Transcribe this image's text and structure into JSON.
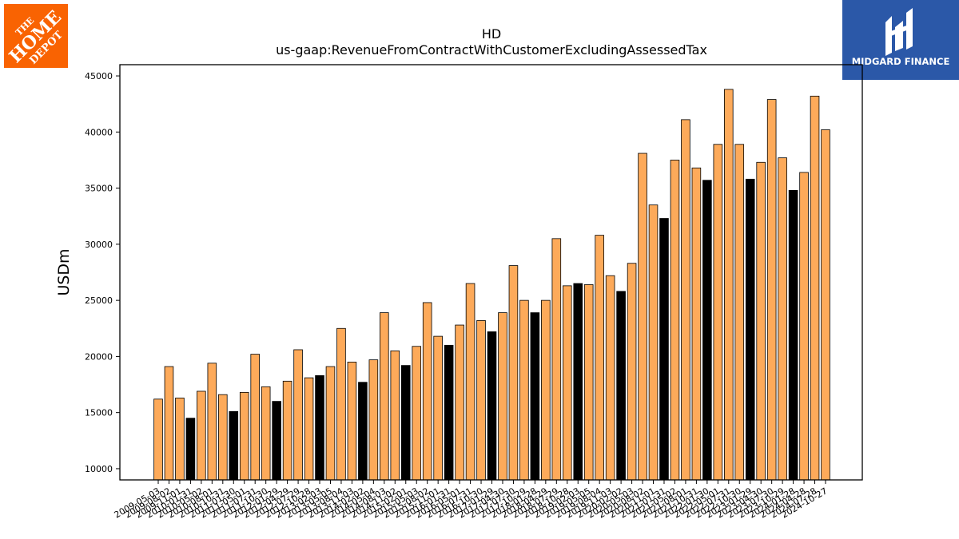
{
  "brand": {
    "left_logo_lines": [
      "THE",
      "HOME",
      "DEPOT"
    ],
    "left_logo_color": "#F96302",
    "right_logo_text": "MIDGARD FINANCE",
    "right_logo_color": "#2B58A8"
  },
  "chart_data": {
    "type": "bar",
    "title": "HD",
    "subtitle": "us-gaap:RevenueFromContractWithCustomerExcludingAssessedTax",
    "xlabel": "",
    "ylabel": "USDm",
    "ylim": [
      9000,
      46000
    ],
    "yticks": [
      10000,
      15000,
      20000,
      25000,
      30000,
      35000,
      40000,
      45000
    ],
    "colors": {
      "quarter": "#FDAA5A",
      "annual_q4": "#000000",
      "edge": "#000000"
    },
    "categories": [
      "2009-05-03",
      "2009-08-02",
      "2009-11-01",
      "2010-01-31",
      "2010-05-02",
      "2010-08-01",
      "2010-10-31",
      "2011-01-30",
      "2011-05-01",
      "2011-07-31",
      "2011-10-30",
      "2012-01-29",
      "2012-04-29",
      "2012-07-29",
      "2012-10-28",
      "2013-02-03",
      "2013-05-05",
      "2013-08-04",
      "2013-11-03",
      "2014-02-02",
      "2014-05-04",
      "2014-08-03",
      "2014-11-02",
      "2015-02-01",
      "2015-05-03",
      "2015-08-02",
      "2015-11-01",
      "2016-01-31",
      "2016-05-01",
      "2016-07-31",
      "2016-10-30",
      "2017-01-29",
      "2017-04-30",
      "2017-07-30",
      "2017-10-29",
      "2018-01-28",
      "2018-04-29",
      "2018-07-29",
      "2018-10-28",
      "2019-02-03",
      "2019-05-05",
      "2019-08-04",
      "2019-11-03",
      "2020-02-02",
      "2020-05-03",
      "2020-08-02",
      "2020-11-01",
      "2021-01-31",
      "2021-05-02",
      "2021-08-01",
      "2021-10-31",
      "2022-01-30",
      "2022-05-01",
      "2022-07-31",
      "2022-10-30",
      "2023-01-29",
      "2023-04-30",
      "2023-07-30",
      "2023-10-29",
      "2024-01-28",
      "2024-04-28",
      "2024-07-28",
      "2024-10-27"
    ],
    "values": [
      16200,
      19100,
      16300,
      14500,
      16900,
      19400,
      16600,
      15100,
      16800,
      20200,
      17300,
      16000,
      17800,
      20600,
      18100,
      18300,
      19100,
      22500,
      19500,
      17700,
      19700,
      23900,
      20500,
      19200,
      20900,
      24800,
      21800,
      21000,
      22800,
      26500,
      23200,
      22200,
      23900,
      28100,
      25000,
      23900,
      25000,
      30500,
      26300,
      26500,
      26400,
      30800,
      27200,
      25800,
      28300,
      38100,
      33500,
      32300,
      37500,
      41100,
      36800,
      35700,
      38900,
      43800,
      38900,
      35800,
      37300,
      42900,
      37700,
      34800,
      36400,
      43200,
      40200
    ],
    "annual_flags": [
      0,
      0,
      0,
      1,
      0,
      0,
      0,
      1,
      0,
      0,
      0,
      1,
      0,
      0,
      0,
      1,
      0,
      0,
      0,
      1,
      0,
      0,
      0,
      1,
      0,
      0,
      0,
      1,
      0,
      0,
      0,
      1,
      0,
      0,
      0,
      1,
      0,
      0,
      0,
      1,
      0,
      0,
      0,
      1,
      0,
      0,
      0,
      1,
      0,
      0,
      0,
      1,
      0,
      0,
      0,
      1,
      0,
      0,
      0,
      1,
      0,
      0,
      0
    ]
  }
}
